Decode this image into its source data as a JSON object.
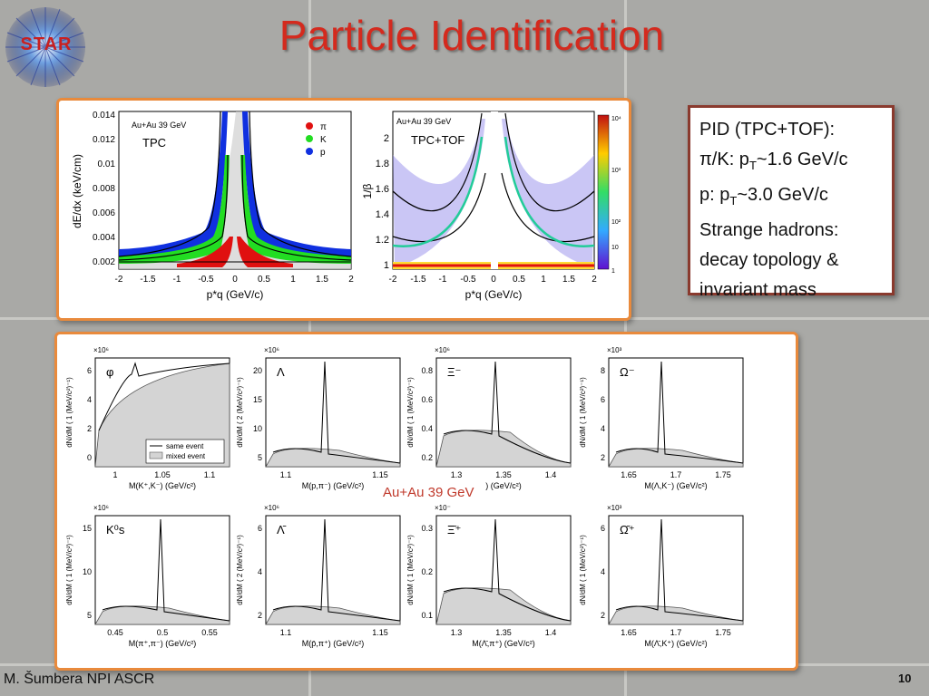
{
  "slide": {
    "title": "Particle Identification",
    "logo_text": "STAR",
    "author": "M. Šumbera NPI ASCR",
    "page_number": "10",
    "caption": "Au+Au 39 GeV"
  },
  "pid_box": {
    "line1": "PID (TPC+TOF):",
    "line2_pre": "π/K: p",
    "line2_sub": "T",
    "line2_post": "~1.6 GeV/c",
    "line3_pre": "p: p",
    "line3_sub": "T",
    "line3_post": "~3.0 GeV/c",
    "line4": "Strange hadrons:",
    "line5": "decay topology &",
    "line6": "invariant mass"
  },
  "tpc_plot": {
    "system": "Au+Au 39 GeV",
    "label": "TPC",
    "ylabel": "dE/dx (keV/cm)",
    "xlabel": "p*q (GeV/c)",
    "yticks": [
      "0.014",
      "0.012",
      "0.01",
      "0.008",
      "0.006",
      "0.004",
      "0.002"
    ],
    "xticks": [
      "-2",
      "-1.5",
      "-1",
      "-0.5",
      "0",
      "0.5",
      "1",
      "1.5",
      "2"
    ],
    "legend": [
      "π",
      "K",
      "p"
    ],
    "colors": {
      "pi": "#e01010",
      "k": "#22dd22",
      "p": "#1030e0"
    }
  },
  "tof_plot": {
    "system": "Au+Au 39 GeV",
    "label": "TPC+TOF",
    "ylabel": "1/β",
    "xlabel": "p*q (GeV/c)",
    "yticks": [
      "2",
      "1.8",
      "1.6",
      "1.4",
      "1.2",
      "1"
    ],
    "xticks": [
      "-2",
      "-1.5",
      "-1",
      "-0.5",
      "0",
      "0.5",
      "1",
      "1.5",
      "2"
    ],
    "colorbar": [
      "10⁴",
      "10³",
      "10²",
      "10",
      "1"
    ]
  },
  "mass_plots": [
    {
      "label": "φ",
      "exp": "×10⁶",
      "ylabel": "dN/dM ( 1 (MeV/c²)⁻¹)",
      "xlabel": "M(K⁺,K⁻) (GeV/c²)",
      "yticks": [
        "6",
        "4",
        "2",
        "0"
      ],
      "xticks": [
        "1",
        "1.05",
        "1.1"
      ]
    },
    {
      "label": "Λ",
      "exp": "×10⁶",
      "ylabel": "dN/dM ( 2 (MeV/c²)⁻¹)",
      "xlabel": "M(p,π⁻) (GeV/c²)",
      "yticks": [
        "20",
        "15",
        "10",
        "5"
      ],
      "xticks": [
        "1.1",
        "1.15"
      ]
    },
    {
      "label": "Ξ⁻",
      "exp": "×10⁶",
      "ylabel": "dN/dM ( 1 (MeV/c²)⁻¹)",
      "xlabel": ") (GeV/c²)",
      "yticks": [
        "0.8",
        "0.6",
        "0.4",
        "0.2"
      ],
      "xticks": [
        "1.3",
        "1.35",
        "1.4"
      ]
    },
    {
      "label": "Ω⁻",
      "exp": "×10³",
      "ylabel": "dN/dM ( 1 (MeV/c²)⁻¹)",
      "xlabel": "M(Λ,K⁻) (GeV/c²)",
      "yticks": [
        "8",
        "6",
        "4",
        "2"
      ],
      "xticks": [
        "1.65",
        "1.7",
        "1.75"
      ]
    },
    {
      "label": "K⁰s",
      "exp": "×10⁶",
      "ylabel": "dN/dM ( 1 (MeV/c²)⁻¹)",
      "xlabel": "M(π⁺,π⁻) (GeV/c²)",
      "yticks": [
        "15",
        "10",
        "5"
      ],
      "xticks": [
        "0.45",
        "0.5",
        "0.55"
      ]
    },
    {
      "label": "Λ̄",
      "exp": "×10⁶",
      "ylabel": "dN/dM ( 2 (MeV/c²)⁻¹)",
      "xlabel": "M(p̄,π⁺) (GeV/c²)",
      "yticks": [
        "6",
        "4",
        "2"
      ],
      "xticks": [
        "1.1",
        "1.15"
      ]
    },
    {
      "label": "Ξ̄⁺",
      "exp": "×10⁻",
      "ylabel": "dN/dM ( 1 (MeV/c²)⁻¹)",
      "xlabel": "M(Λ̄,π⁺) (GeV/c²)",
      "yticks": [
        "0.3",
        "0.2",
        "0.1"
      ],
      "xticks": [
        "1.3",
        "1.35",
        "1.4"
      ]
    },
    {
      "label": "Ω̄⁺",
      "exp": "×10³",
      "ylabel": "dN/dM ( 1 (MeV/c²)⁻¹)",
      "xlabel": "M(Λ̄,K⁺) (GeV/c²)",
      "yticks": [
        "6",
        "4",
        "2"
      ],
      "xticks": [
        "1.65",
        "1.7",
        "1.75"
      ]
    }
  ],
  "legend_same": "same event",
  "legend_mixed": "mixed event"
}
